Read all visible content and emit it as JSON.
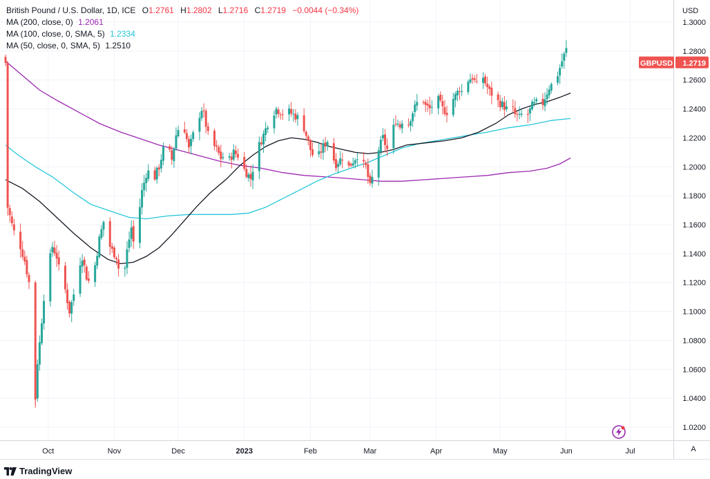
{
  "legend": {
    "title": "British Pound / U.S. Dollar, 1D, ICE",
    "ohlc": {
      "o_label": "O",
      "o": "1.2761",
      "h_label": "H",
      "h": "1.2802",
      "l_label": "L",
      "l": "1.2716",
      "c_label": "C",
      "c": "1.2719",
      "change": "−0.0044 (−0.34%)"
    },
    "ma200": {
      "label": "MA (200, close, 0)",
      "value": "1.2061",
      "color": "#9c27b0"
    },
    "ma100": {
      "label": "MA (100, close, 0, SMA, 5)",
      "value": "1.2334",
      "color": "#26c6da"
    },
    "ma50": {
      "label": "MA (50, close, 0, SMA, 5)",
      "value": "1.2510",
      "color": "#131722"
    }
  },
  "price_axis": {
    "currency": "USD"
  },
  "last_price_tag": {
    "symbol": "GBPUSD",
    "value": "1.2719",
    "color": "#ef5350"
  },
  "brand": {
    "name": "TradingView"
  },
  "auto_button": {
    "label": "A"
  },
  "colors": {
    "up": "#26a69a",
    "down": "#ef5350",
    "grid": "#f0f3fa",
    "axis_text": "#131722"
  },
  "chart_data": {
    "type": "candlestick",
    "title": "British Pound / U.S. Dollar, 1D, ICE",
    "ylim": [
      1.01,
      1.31
    ],
    "yticks": [
      1.3,
      1.28,
      1.26,
      1.24,
      1.22,
      1.2,
      1.18,
      1.16,
      1.14,
      1.12,
      1.1,
      1.08,
      1.06,
      1.04,
      1.02
    ],
    "ytick_labels": [
      "1.3000",
      "1.2800",
      "1.2600",
      "1.2400",
      "1.2200",
      "1.2000",
      "1.1800",
      "1.1600",
      "1.1400",
      "1.1200",
      "1.1000",
      "1.0800",
      "1.0600",
      "1.0400",
      "1.0200"
    ],
    "x_range_days": [
      0,
      275
    ],
    "xticks": [
      {
        "label": "Oct",
        "day": 20
      },
      {
        "label": "Nov",
        "day": 51
      },
      {
        "label": "Dec",
        "day": 81
      },
      {
        "label": "2023",
        "day": 112
      },
      {
        "label": "Feb",
        "day": 143
      },
      {
        "label": "Mar",
        "day": 171
      },
      {
        "label": "Apr",
        "day": 202
      },
      {
        "label": "May",
        "day": 232
      },
      {
        "label": "Jun",
        "day": 263
      },
      {
        "label": "Jul",
        "day": 293
      }
    ],
    "close_path": [
      [
        1,
        1.172
      ],
      [
        3,
        1.16
      ],
      [
        5,
        1.15
      ],
      [
        7,
        1.145
      ],
      [
        9,
        1.135
      ],
      [
        11,
        1.12
      ],
      [
        13,
        1.085
      ],
      [
        14,
        1.04
      ],
      [
        15,
        1.065
      ],
      [
        16,
        1.078
      ],
      [
        18,
        1.11
      ],
      [
        20,
        1.13
      ],
      [
        22,
        1.145
      ],
      [
        24,
        1.138
      ],
      [
        26,
        1.122
      ],
      [
        28,
        1.115
      ],
      [
        30,
        1.1
      ],
      [
        32,
        1.112
      ],
      [
        34,
        1.13
      ],
      [
        36,
        1.138
      ],
      [
        38,
        1.124
      ],
      [
        40,
        1.118
      ],
      [
        42,
        1.132
      ],
      [
        44,
        1.15
      ],
      [
        46,
        1.162
      ],
      [
        48,
        1.148
      ],
      [
        50,
        1.142
      ],
      [
        52,
        1.138
      ],
      [
        54,
        1.122
      ],
      [
        55,
        1.118
      ],
      [
        57,
        1.142
      ],
      [
        59,
        1.158
      ],
      [
        61,
        1.138
      ],
      [
        62,
        1.162
      ],
      [
        64,
        1.183
      ],
      [
        66,
        1.195
      ],
      [
        68,
        1.198
      ],
      [
        70,
        1.193
      ],
      [
        72,
        1.2
      ],
      [
        74,
        1.212
      ],
      [
        76,
        1.214
      ],
      [
        78,
        1.205
      ],
      [
        80,
        1.222
      ],
      [
        82,
        1.23
      ],
      [
        84,
        1.226
      ],
      [
        86,
        1.212
      ],
      [
        88,
        1.222
      ],
      [
        90,
        1.232
      ],
      [
        92,
        1.24
      ],
      [
        93,
        1.236
      ],
      [
        95,
        1.222
      ],
      [
        97,
        1.216
      ],
      [
        99,
        1.212
      ],
      [
        101,
        1.206
      ],
      [
        103,
        1.208
      ],
      [
        105,
        1.205
      ],
      [
        107,
        1.21
      ],
      [
        109,
        1.208
      ],
      [
        111,
        1.2
      ],
      [
        113,
        1.196
      ],
      [
        115,
        1.192
      ],
      [
        117,
        1.205
      ],
      [
        119,
        1.215
      ],
      [
        121,
        1.222
      ],
      [
        123,
        1.23
      ],
      [
        125,
        1.236
      ],
      [
        127,
        1.24
      ],
      [
        129,
        1.238
      ],
      [
        131,
        1.236
      ],
      [
        133,
        1.238
      ],
      [
        135,
        1.236
      ],
      [
        137,
        1.234
      ],
      [
        139,
        1.232
      ],
      [
        141,
        1.222
      ],
      [
        143,
        1.212
      ],
      [
        145,
        1.205
      ],
      [
        147,
        1.208
      ],
      [
        149,
        1.214
      ],
      [
        151,
        1.218
      ],
      [
        153,
        1.208
      ],
      [
        155,
        1.202
      ],
      [
        157,
        1.205
      ],
      [
        159,
        1.208
      ],
      [
        161,
        1.2
      ],
      [
        163,
        1.204
      ],
      [
        165,
        1.208
      ],
      [
        167,
        1.202
      ],
      [
        169,
        1.2
      ],
      [
        171,
        1.186
      ],
      [
        173,
        1.198
      ],
      [
        175,
        1.212
      ],
      [
        177,
        1.22
      ],
      [
        179,
        1.212
      ],
      [
        181,
        1.222
      ],
      [
        183,
        1.232
      ],
      [
        185,
        1.228
      ],
      [
        187,
        1.236
      ],
      [
        189,
        1.23
      ],
      [
        191,
        1.238
      ],
      [
        193,
        1.244
      ],
      [
        195,
        1.25
      ],
      [
        197,
        1.242
      ],
      [
        199,
        1.24
      ],
      [
        201,
        1.244
      ],
      [
        203,
        1.246
      ],
      [
        205,
        1.24
      ],
      [
        207,
        1.238
      ],
      [
        209,
        1.245
      ],
      [
        211,
        1.249
      ],
      [
        213,
        1.254
      ],
      [
        215,
        1.25
      ],
      [
        217,
        1.26
      ],
      [
        219,
        1.262
      ],
      [
        221,
        1.256
      ],
      [
        223,
        1.266
      ],
      [
        225,
        1.258
      ],
      [
        227,
        1.252
      ],
      [
        229,
        1.249
      ],
      [
        231,
        1.245
      ],
      [
        233,
        1.243
      ],
      [
        235,
        1.24
      ],
      [
        237,
        1.242
      ],
      [
        239,
        1.236
      ],
      [
        241,
        1.234
      ],
      [
        243,
        1.238
      ],
      [
        245,
        1.236
      ],
      [
        247,
        1.242
      ],
      [
        249,
        1.244
      ],
      [
        251,
        1.24
      ],
      [
        253,
        1.248
      ],
      [
        255,
        1.255
      ],
      [
        257,
        1.258
      ],
      [
        259,
        1.264
      ],
      [
        261,
        1.273
      ],
      [
        263,
        1.281
      ],
      [
        264,
        1.28
      ],
      [
        265,
        1.2719
      ]
    ],
    "series": [
      {
        "name": "MA (200, close, 0)",
        "color": "#9c27b0",
        "points": [
          [
            0,
            1.273
          ],
          [
            8,
            1.263
          ],
          [
            16,
            1.253
          ],
          [
            24,
            1.246
          ],
          [
            34,
            1.238
          ],
          [
            44,
            1.23
          ],
          [
            54,
            1.224
          ],
          [
            64,
            1.219
          ],
          [
            72,
            1.215
          ],
          [
            80,
            1.212
          ],
          [
            90,
            1.208
          ],
          [
            100,
            1.204
          ],
          [
            110,
            1.201
          ],
          [
            120,
            1.199
          ],
          [
            130,
            1.196
          ],
          [
            140,
            1.194
          ],
          [
            150,
            1.193
          ],
          [
            160,
            1.192
          ],
          [
            168,
            1.191
          ],
          [
            176,
            1.19
          ],
          [
            186,
            1.19
          ],
          [
            196,
            1.191
          ],
          [
            206,
            1.192
          ],
          [
            216,
            1.193
          ],
          [
            226,
            1.194
          ],
          [
            236,
            1.196
          ],
          [
            246,
            1.197
          ],
          [
            254,
            1.199
          ],
          [
            260,
            1.202
          ],
          [
            265,
            1.2061
          ]
        ]
      },
      {
        "name": "MA (100, close, 0, SMA, 5)",
        "color": "#26c6da",
        "points": [
          [
            0,
            1.215
          ],
          [
            6,
            1.208
          ],
          [
            14,
            1.2
          ],
          [
            22,
            1.193
          ],
          [
            32,
            1.182
          ],
          [
            40,
            1.174
          ],
          [
            50,
            1.169
          ],
          [
            58,
            1.165
          ],
          [
            66,
            1.164
          ],
          [
            76,
            1.166
          ],
          [
            86,
            1.167
          ],
          [
            96,
            1.167
          ],
          [
            106,
            1.167
          ],
          [
            114,
            1.168
          ],
          [
            122,
            1.172
          ],
          [
            130,
            1.178
          ],
          [
            138,
            1.184
          ],
          [
            146,
            1.19
          ],
          [
            154,
            1.195
          ],
          [
            162,
            1.199
          ],
          [
            170,
            1.203
          ],
          [
            178,
            1.208
          ],
          [
            186,
            1.213
          ],
          [
            194,
            1.216
          ],
          [
            202,
            1.218
          ],
          [
            210,
            1.22
          ],
          [
            218,
            1.222
          ],
          [
            226,
            1.224
          ],
          [
            236,
            1.227
          ],
          [
            246,
            1.229
          ],
          [
            256,
            1.232
          ],
          [
            265,
            1.2334
          ]
        ]
      },
      {
        "name": "MA (50, close, 0, SMA, 5)",
        "color": "#131722",
        "points": [
          [
            0,
            1.191
          ],
          [
            8,
            1.185
          ],
          [
            16,
            1.176
          ],
          [
            24,
            1.165
          ],
          [
            32,
            1.154
          ],
          [
            40,
            1.144
          ],
          [
            48,
            1.136
          ],
          [
            54,
            1.133
          ],
          [
            60,
            1.134
          ],
          [
            66,
            1.138
          ],
          [
            72,
            1.144
          ],
          [
            78,
            1.153
          ],
          [
            84,
            1.163
          ],
          [
            90,
            1.173
          ],
          [
            96,
            1.182
          ],
          [
            104,
            1.192
          ],
          [
            110,
            1.201
          ],
          [
            116,
            1.208
          ],
          [
            122,
            1.214
          ],
          [
            128,
            1.218
          ],
          [
            134,
            1.22
          ],
          [
            140,
            1.219
          ],
          [
            146,
            1.217
          ],
          [
            152,
            1.214
          ],
          [
            158,
            1.212
          ],
          [
            164,
            1.21
          ],
          [
            170,
            1.209
          ],
          [
            176,
            1.21
          ],
          [
            182,
            1.212
          ],
          [
            188,
            1.215
          ],
          [
            194,
            1.216
          ],
          [
            200,
            1.217
          ],
          [
            206,
            1.218
          ],
          [
            214,
            1.22
          ],
          [
            222,
            1.224
          ],
          [
            230,
            1.23
          ],
          [
            236,
            1.236
          ],
          [
            242,
            1.24
          ],
          [
            248,
            1.243
          ],
          [
            254,
            1.245
          ],
          [
            260,
            1.248
          ],
          [
            265,
            1.251
          ]
        ]
      }
    ],
    "last_value": 1.2719
  }
}
